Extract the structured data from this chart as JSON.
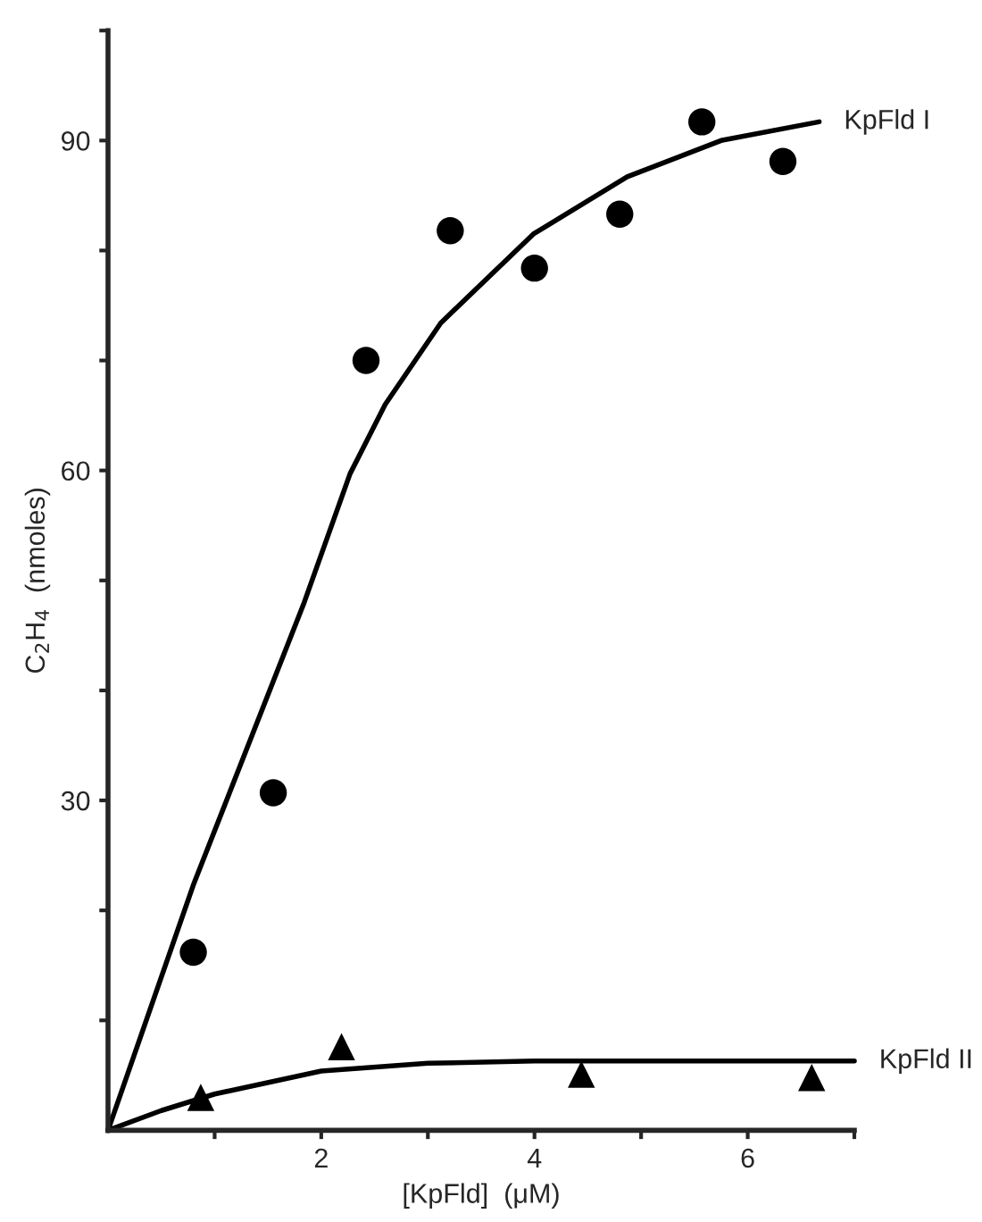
{
  "chart_data": {
    "type": "scatter",
    "xlabel": "[KpFld]  (μM)",
    "ylabel": "C$_{2}$H$_{4}$  (nmoles)",
    "xlim": [
      0,
      7
    ],
    "ylim": [
      0,
      100
    ],
    "xticks": [
      {
        "value": 1,
        "label": null
      },
      2,
      {
        "value": 3,
        "label": null
      },
      4,
      {
        "value": 5,
        "label": null
      },
      6,
      {
        "value": 7,
        "label": null
      }
    ],
    "yticks": [
      {
        "value": 10,
        "label": null
      },
      {
        "value": 20,
        "label": null
      },
      30,
      {
        "value": 40,
        "label": null
      },
      {
        "value": 50,
        "label": null
      },
      60,
      {
        "value": 70,
        "label": null
      },
      {
        "value": 80,
        "label": null
      },
      90,
      {
        "value": 100,
        "label": null
      }
    ],
    "grid": false,
    "legend": false,
    "series": [
      {
        "marker": "circle",
        "color": "#000000",
        "x": [
          0.8,
          1.55,
          2.42,
          3.21,
          4.0,
          4.8,
          5.57,
          6.33
        ],
        "values": [
          16.2,
          30.7,
          70,
          81.8,
          78.4,
          83.3,
          91.7,
          88.1
        ]
      },
      {
        "marker": "triangle",
        "color": "#000000",
        "x": [
          0.87,
          2.19,
          4.44,
          6.6
        ],
        "values": [
          3.0,
          7.6,
          5.1,
          4.8
        ]
      },
      {
        "type": "line",
        "name": "KpFld I",
        "marker": "none",
        "line_style": "solid",
        "color": "#000000",
        "x": [
          0,
          0.8,
          1.84,
          2.27,
          2.6,
          3.12,
          3.99,
          4.87,
          5.75,
          6.67
        ],
        "values": [
          0,
          22.3,
          48,
          59.7,
          66,
          73.4,
          81.5,
          86.7,
          90,
          91.7
        ]
      },
      {
        "type": "line",
        "name": "KpFld II",
        "marker": "none",
        "line_style": "solid",
        "color": "#000000",
        "x": [
          0,
          0.5,
          1,
          2,
          3,
          4,
          7
        ],
        "values": [
          0,
          1.8,
          3.3,
          5.4,
          6.1,
          6.3,
          6.3
        ]
      }
    ]
  }
}
